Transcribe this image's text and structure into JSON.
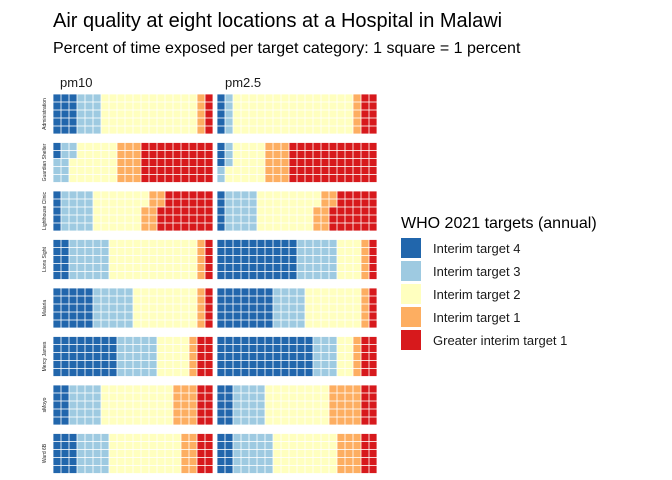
{
  "chart_data": {
    "type": "waffle",
    "title": "Air quality at eight locations at a Hospital in Malawi",
    "subtitle": "Percent of time exposed per target category: 1 square = 1 percent",
    "columns": [
      "pm10",
      "pm2.5"
    ],
    "rows": [
      "Administration",
      "Guardian Shelter",
      "Lighthouse Clinic",
      "Lions Sight",
      "Malaria",
      "Mercy James",
      "sMoyo",
      "Ward 6B"
    ],
    "grid": {
      "rows_per_waffle": 5,
      "columns_per_waffle": 20
    },
    "legend": {
      "title": "WHO 2021 targets (annual)",
      "placement": "right",
      "entries": [
        {
          "name": "Interim target 4",
          "color": "#2166ac"
        },
        {
          "name": "Interim target 3",
          "color": "#9ecae1"
        },
        {
          "name": "Interim target 2",
          "color": "#ffffbf"
        },
        {
          "name": "Interim target 1",
          "color": "#fdae61"
        },
        {
          "name": "Greater interim target 1",
          "color": "#d7191c"
        }
      ]
    },
    "series": [
      {
        "location": "Administration",
        "pollutant": "pm10",
        "values": [
          15,
          15,
          60,
          5,
          5
        ]
      },
      {
        "location": "Administration",
        "pollutant": "pm2.5",
        "values": [
          5,
          5,
          75,
          5,
          10
        ]
      },
      {
        "location": "Guardian Shelter",
        "pollutant": "pm10",
        "values": [
          2,
          10,
          28,
          15,
          45
        ]
      },
      {
        "location": "Guardian Shelter",
        "pollutant": "pm2.5",
        "values": [
          3,
          5,
          22,
          15,
          55
        ]
      },
      {
        "location": "Lighthouse Clinic",
        "pollutant": "pm10",
        "values": [
          5,
          20,
          32,
          10,
          33
        ]
      },
      {
        "location": "Lighthouse Clinic",
        "pollutant": "pm2.5",
        "values": [
          5,
          20,
          37,
          10,
          28
        ]
      },
      {
        "location": "Lions Sight",
        "pollutant": "pm10",
        "values": [
          10,
          25,
          55,
          5,
          5
        ]
      },
      {
        "location": "Lions Sight",
        "pollutant": "pm2.5",
        "values": [
          50,
          25,
          15,
          5,
          5
        ]
      },
      {
        "location": "Malaria",
        "pollutant": "pm10",
        "values": [
          25,
          25,
          40,
          5,
          5
        ]
      },
      {
        "location": "Malaria",
        "pollutant": "pm2.5",
        "values": [
          35,
          20,
          35,
          5,
          5
        ]
      },
      {
        "location": "Mercy James",
        "pollutant": "pm10",
        "values": [
          40,
          25,
          20,
          5,
          10
        ]
      },
      {
        "location": "Mercy James",
        "pollutant": "pm2.5",
        "values": [
          60,
          15,
          10,
          5,
          10
        ]
      },
      {
        "location": "sMoyo",
        "pollutant": "pm10",
        "values": [
          10,
          20,
          45,
          15,
          10
        ]
      },
      {
        "location": "sMoyo",
        "pollutant": "pm2.5",
        "values": [
          10,
          20,
          40,
          20,
          10
        ]
      },
      {
        "location": "Ward 6B",
        "pollutant": "pm10",
        "values": [
          15,
          20,
          45,
          10,
          10
        ]
      },
      {
        "location": "Ward 6B",
        "pollutant": "pm2.5",
        "values": [
          10,
          25,
          40,
          15,
          10
        ]
      }
    ]
  }
}
